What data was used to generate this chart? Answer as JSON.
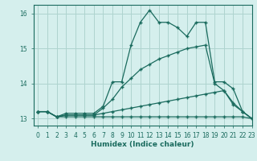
{
  "xlabel": "Humidex (Indice chaleur)",
  "xlim": [
    -0.5,
    23
  ],
  "ylim": [
    12.8,
    16.25
  ],
  "yticks": [
    13,
    14,
    15,
    16
  ],
  "xticks": [
    0,
    1,
    2,
    3,
    4,
    5,
    6,
    7,
    8,
    9,
    10,
    11,
    12,
    13,
    14,
    15,
    16,
    17,
    18,
    19,
    20,
    21,
    22,
    23
  ],
  "background_color": "#d5efed",
  "grid_color": "#aed4cf",
  "line_color": "#1a6b5e",
  "lines": [
    {
      "x": [
        0,
        1,
        2,
        3,
        4,
        5,
        6,
        7,
        8,
        9,
        10,
        11,
        12,
        13,
        14,
        15,
        16,
        17,
        18,
        19,
        20,
        21,
        22,
        23
      ],
      "y": [
        13.2,
        13.2,
        13.05,
        13.15,
        13.15,
        13.15,
        13.15,
        13.35,
        14.05,
        14.05,
        15.1,
        15.75,
        16.1,
        15.75,
        15.75,
        15.6,
        15.35,
        15.75,
        15.75,
        14.05,
        14.05,
        13.85,
        13.2,
        13.0
      ]
    },
    {
      "x": [
        0,
        1,
        2,
        3,
        4,
        5,
        6,
        7,
        8,
        9,
        10,
        11,
        12,
        13,
        14,
        15,
        16,
        17,
        18,
        19,
        20,
        21,
        22,
        23
      ],
      "y": [
        13.2,
        13.2,
        13.05,
        13.1,
        13.1,
        13.1,
        13.1,
        13.3,
        13.55,
        13.9,
        14.15,
        14.4,
        14.55,
        14.7,
        14.8,
        14.9,
        15.0,
        15.05,
        15.1,
        14.0,
        13.8,
        13.4,
        13.2,
        13.0
      ]
    },
    {
      "x": [
        0,
        1,
        2,
        3,
        4,
        5,
        6,
        7,
        8,
        9,
        10,
        11,
        12,
        13,
        14,
        15,
        16,
        17,
        18,
        19,
        20,
        21,
        22,
        23
      ],
      "y": [
        13.2,
        13.2,
        13.05,
        13.1,
        13.1,
        13.1,
        13.1,
        13.15,
        13.2,
        13.25,
        13.3,
        13.35,
        13.4,
        13.45,
        13.5,
        13.55,
        13.6,
        13.65,
        13.7,
        13.75,
        13.8,
        13.45,
        13.2,
        13.0
      ]
    },
    {
      "x": [
        0,
        1,
        2,
        3,
        4,
        5,
        6,
        7,
        8,
        9,
        10,
        11,
        12,
        13,
        14,
        15,
        16,
        17,
        18,
        19,
        20,
        21,
        22,
        23
      ],
      "y": [
        13.2,
        13.2,
        13.05,
        13.05,
        13.05,
        13.05,
        13.05,
        13.05,
        13.05,
        13.05,
        13.05,
        13.05,
        13.05,
        13.05,
        13.05,
        13.05,
        13.05,
        13.05,
        13.05,
        13.05,
        13.05,
        13.05,
        13.05,
        13.0
      ]
    }
  ]
}
